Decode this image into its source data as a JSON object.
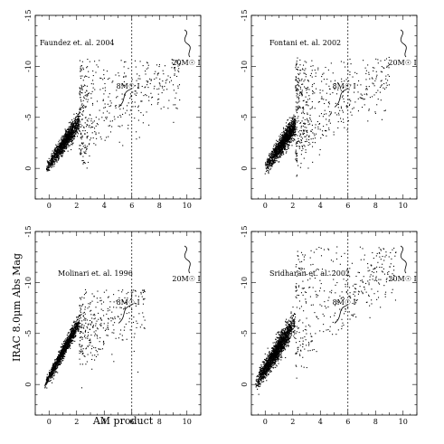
{
  "figure": {
    "xlabel": "AM product",
    "ylabel": "IRAC 8.0μm Abs Mag"
  },
  "chart_data": [
    {
      "type": "scatter",
      "label": "Faundez et. al. 2004",
      "xlim": [
        -1,
        11
      ],
      "ylim": [
        3,
        -15
      ],
      "xticks": [
        0,
        2,
        4,
        6,
        8,
        10
      ],
      "yticks": [
        0,
        -5,
        -10,
        -15
      ],
      "vline_x": 6,
      "annotations": [
        {
          "text": "8M☉ I",
          "x": 5.6,
          "y": -7.8
        },
        {
          "text": "20M☉ I",
          "x": 10.5,
          "y": -11.3
        }
      ],
      "distribution": {
        "n": 1700,
        "seed": 11,
        "xmin": -0.2,
        "xmax": 9.5,
        "slope": 1.92,
        "clip": -8.2,
        "scatter": 0.55,
        "sparse_tail": true
      }
    },
    {
      "type": "scatter",
      "label": "Fontani et. al. 2002",
      "xlim": [
        -1,
        11
      ],
      "ylim": [
        3,
        -15
      ],
      "xticks": [
        0,
        2,
        4,
        6,
        8,
        10
      ],
      "yticks": [
        0,
        -5,
        -10,
        -15
      ],
      "vline_x": 6,
      "annotations": [
        {
          "text": "8M☉ I",
          "x": 5.6,
          "y": -7.8
        },
        {
          "text": "20M☉ I",
          "x": 10.5,
          "y": -11.3
        }
      ],
      "distribution": {
        "n": 1900,
        "seed": 23,
        "xmin": 0,
        "xmax": 9.0,
        "slope": 1.95,
        "clip": -8.4,
        "scatter": 0.6,
        "sparse_tail": true
      }
    },
    {
      "type": "scatter",
      "label": "Molinari et. al. 1996",
      "xlim": [
        -1,
        11
      ],
      "ylim": [
        3,
        -15
      ],
      "xticks": [
        0,
        2,
        4,
        6,
        8,
        10
      ],
      "yticks": [
        0,
        -5,
        -10,
        -15
      ],
      "vline_x": 6,
      "annotations": [
        {
          "text": "8M☉ I",
          "x": 5.6,
          "y": -7.8
        },
        {
          "text": "20M☉ I",
          "x": 10.5,
          "y": -11.3
        }
      ],
      "distribution": {
        "n": 1500,
        "seed": 37,
        "xmin": -0.3,
        "xmax": 7.0,
        "slope": 2.45,
        "clip": -6.8,
        "scatter": 0.45,
        "sparse_tail": true
      }
    },
    {
      "type": "scatter",
      "label": "Sridharan et. al. 2002",
      "xlim": [
        -1,
        11
      ],
      "ylim": [
        3,
        -15
      ],
      "xticks": [
        0,
        2,
        4,
        6,
        8,
        10
      ],
      "yticks": [
        0,
        -5,
        -10,
        -15
      ],
      "vline_x": 6,
      "annotations": [
        {
          "text": "8M☉ I",
          "x": 5.6,
          "y": -7.8
        },
        {
          "text": "20M☉ I",
          "x": 10.5,
          "y": -11.3
        }
      ],
      "distribution": {
        "n": 2100,
        "seed": 53,
        "xmin": -0.7,
        "xmax": 9.5,
        "slope": 2.15,
        "clip": -11.0,
        "scatter": 0.75,
        "sparse_tail": true
      }
    }
  ]
}
